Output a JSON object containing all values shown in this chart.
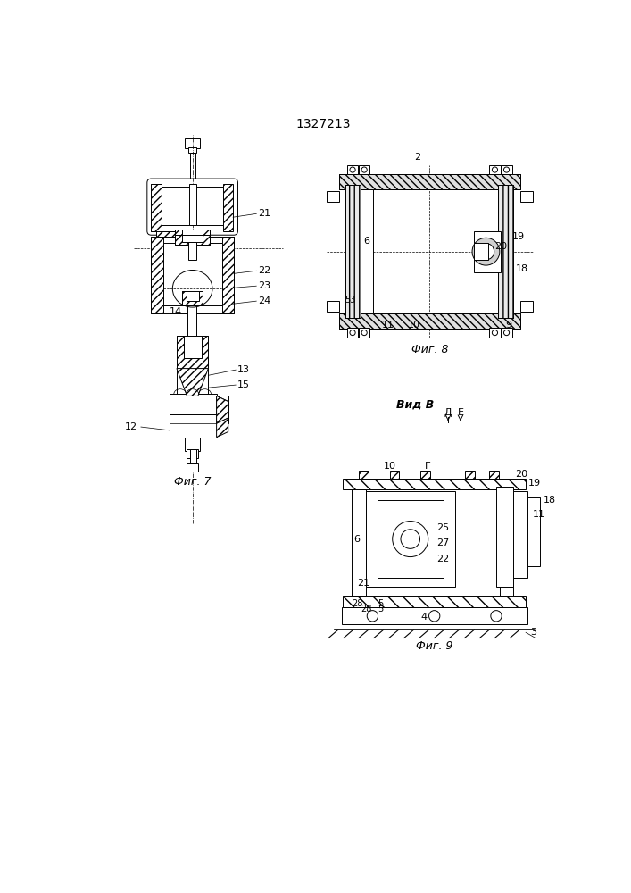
{
  "title": "1327213",
  "background_color": "#ffffff",
  "fig_width": 7.07,
  "fig_height": 10.0,
  "fig_dpi": 100,
  "fig7_label": "Фиг. 7",
  "fig8_label": "Фиг. 8",
  "fig9_label": "Фиг. 9",
  "vid_b_label": "Вид В"
}
